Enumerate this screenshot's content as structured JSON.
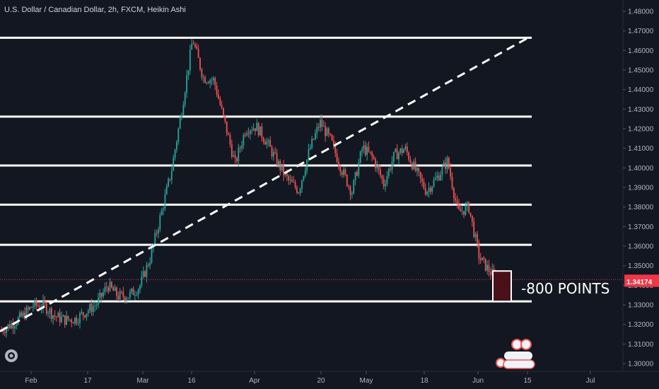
{
  "chart_data": {
    "type": "candlestick",
    "title": "U.S. Dollar / Canadian Dollar, 2h, FXCM, Heikin Ashi",
    "ylim": [
      1.296,
      1.4805
    ],
    "y_ticks": [
      "1.48000",
      "1.47000",
      "1.46000",
      "1.45000",
      "1.44000",
      "1.43000",
      "1.42000",
      "1.41000",
      "1.40000",
      "1.39000",
      "1.38000",
      "1.37000",
      "1.36000",
      "1.35000",
      "1.34000",
      "1.33000",
      "1.32000",
      "1.31000",
      "1.30000"
    ],
    "x_ticks": [
      "Feb",
      "17",
      "Mar",
      "16",
      "Apr",
      "20",
      "May",
      "18",
      "Jun",
      "15",
      "Jul"
    ],
    "horizontal_levels": [
      1.4665,
      1.4262,
      1.4012,
      1.3812,
      1.3607,
      1.3318
    ],
    "trendline": {
      "from": {
        "x": "Jan 20",
        "y": 1.3165
      },
      "to": {
        "x": "Jun 10",
        "y": 1.4665
      },
      "style": "dashed"
    },
    "current_price": "1.34293",
    "second_price": "1.34174",
    "price_colors": {
      "current": "#f23645",
      "second": "#f23645"
    },
    "annotation": "-800 POINTS",
    "up_color": "#26a69a",
    "down_color": "#ef5350",
    "series_path": [
      [
        1.318,
        1.3165
      ],
      [
        1.322,
        1.3185
      ],
      [
        1.325,
        1.3235
      ],
      [
        1.331,
        1.3285
      ],
      [
        1.332,
        1.3275
      ],
      [
        1.324,
        1.3245
      ],
      [
        1.3232,
        1.3215
      ],
      [
        1.3235,
        1.322
      ],
      [
        1.329,
        1.3244
      ],
      [
        1.33,
        1.3312
      ],
      [
        1.342,
        1.338
      ],
      [
        1.335,
        1.3338
      ],
      [
        1.334,
        1.3355
      ],
      [
        1.339,
        1.3395
      ],
      [
        1.3602,
        1.3475
      ],
      [
        1.3782,
        1.3735
      ],
      [
        1.4052,
        1.3915
      ],
      [
        1.4352,
        1.4258
      ],
      [
        1.4668,
        1.4648
      ],
      [
        1.4498,
        1.4425
      ],
      [
        1.4462,
        1.4435
      ],
      [
        1.4266,
        1.4205
      ],
      [
        1.4035,
        1.4005
      ],
      [
        1.4215,
        1.4185
      ],
      [
        1.4225,
        1.4198
      ],
      [
        1.4135,
        1.4125
      ],
      [
        1.4035,
        1.4015
      ],
      [
        1.3945,
        1.3925
      ],
      [
        1.3885,
        1.3885
      ],
      [
        1.4095,
        1.4085
      ],
      [
        1.4238,
        1.4228
      ],
      [
        1.4145,
        1.4136
      ],
      [
        1.4005,
        1.3985
      ],
      [
        1.3885,
        1.3865
      ],
      [
        1.4115,
        1.4096
      ],
      [
        1.4052,
        1.4045
      ],
      [
        1.3935,
        1.3902
      ],
      [
        1.4075,
        1.4055
      ],
      [
        1.4095,
        1.4101
      ],
      [
        1.3995,
        1.3975
      ],
      [
        1.3885,
        1.3875
      ],
      [
        1.3955,
        1.3945
      ],
      [
        1.4035,
        1.4034
      ],
      [
        1.3795,
        1.3745
      ],
      [
        1.3835,
        1.3765
      ],
      [
        1.3555,
        1.3525
      ],
      [
        1.3485,
        1.3455
      ],
      [
        1.3415,
        1.3418
      ]
    ]
  }
}
